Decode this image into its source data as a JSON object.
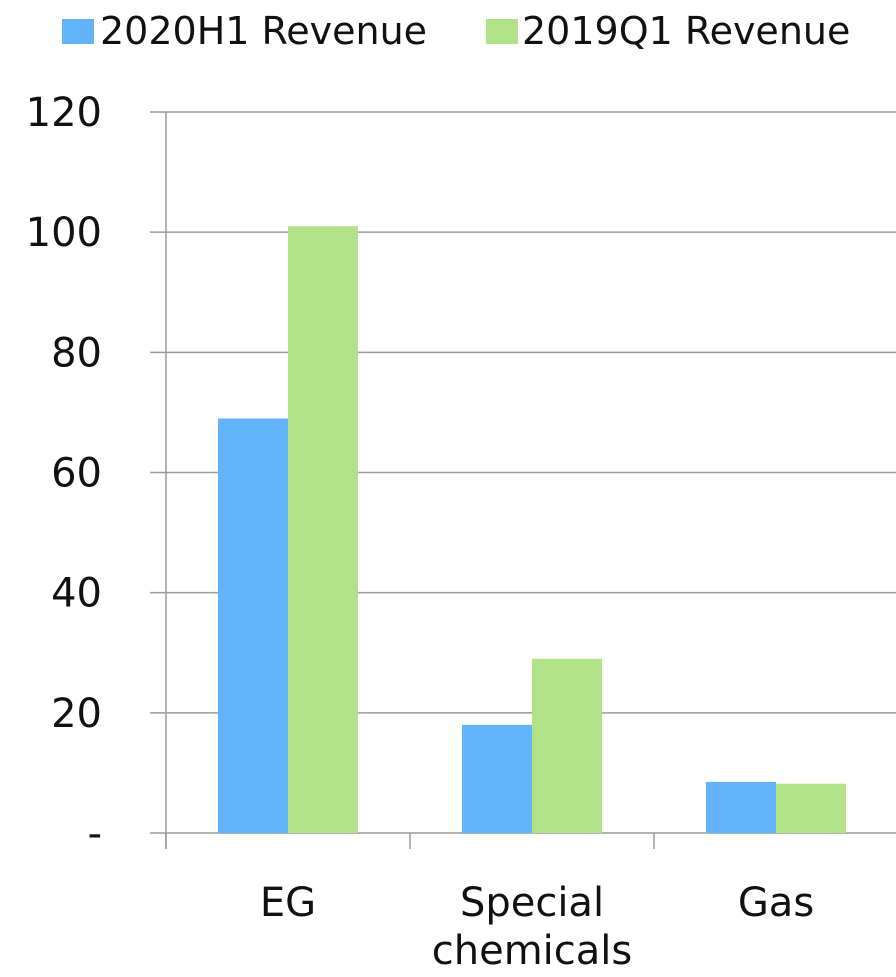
{
  "chart_data": {
    "type": "bar",
    "categories": [
      "EG",
      "Special chemicals",
      "Gas"
    ],
    "category_label_lines": [
      [
        "EG"
      ],
      [
        "Special",
        "chemicals"
      ],
      [
        "Gas"
      ]
    ],
    "series": [
      {
        "name": "2020H1 Revenue",
        "values": [
          69,
          18,
          8.5
        ],
        "color": "#63b3fb"
      },
      {
        "name": "2019Q1 Revenue",
        "values": [
          101,
          29,
          8.2
        ],
        "color": "#b2e287"
      }
    ],
    "title": "",
    "xlabel": "",
    "ylabel": "",
    "ylim": [
      0,
      120
    ],
    "y_ticks": [
      0,
      20,
      40,
      60,
      80,
      100,
      120
    ],
    "y_tick_labels": [
      "-",
      "20",
      "40",
      "60",
      "80",
      "100",
      "120"
    ],
    "grid": true,
    "legend_position": "top"
  },
  "colors": {
    "grid": "#9a9a9a",
    "axis": "#9a9a9a",
    "text": "#111111"
  }
}
